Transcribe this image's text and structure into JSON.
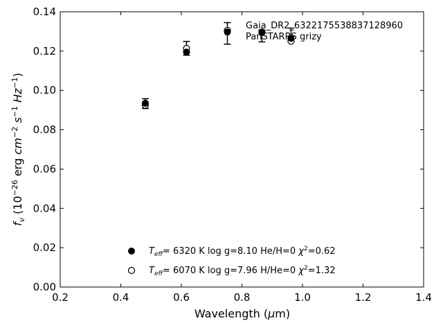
{
  "chart_data": {
    "type": "scatter",
    "annotations": [
      "Gaia_DR2_6322175538837128960",
      "PanSTARRS grizy"
    ],
    "xlabel": "Wavelength (μm)",
    "ylabel": "fν (10⁻²⁶ erg cm⁻² s⁻¹ Hz⁻¹)",
    "xlim": [
      0.2,
      1.4
    ],
    "ylim": [
      0.0,
      0.14
    ],
    "xticks": [
      "0.2",
      "0.4",
      "0.6",
      "0.8",
      "1.0",
      "1.2",
      "1.4"
    ],
    "yticks": [
      "0.00",
      "0.02",
      "0.04",
      "0.06",
      "0.08",
      "0.10",
      "0.12",
      "0.14"
    ],
    "grid": false,
    "legend_position": "lower-center",
    "observed": {
      "x": [
        0.481,
        0.617,
        0.752,
        0.866,
        0.962
      ],
      "y": [
        0.0933,
        0.1214,
        0.129,
        0.1277,
        0.1282
      ],
      "yerr": [
        0.0025,
        0.0035,
        0.0055,
        0.003,
        0.0035
      ]
    },
    "series": [
      {
        "name": "T_eff= 6320 K  log g=8.10  He/H=0  χ²=0.62",
        "marker": "filled-circle",
        "x": [
          0.481,
          0.617,
          0.752,
          0.866,
          0.962
        ],
        "y": [
          0.0935,
          0.1195,
          0.1297,
          0.1297,
          0.1265
        ]
      },
      {
        "name": "T_eff= 6070 K  log g=7.96  H/He=0  χ²=1.32",
        "marker": "open-circle",
        "x": [
          0.481,
          0.617,
          0.752,
          0.866,
          0.962
        ],
        "y": [
          0.0925,
          0.1213,
          0.1305,
          0.1295,
          0.125
        ]
      }
    ]
  }
}
